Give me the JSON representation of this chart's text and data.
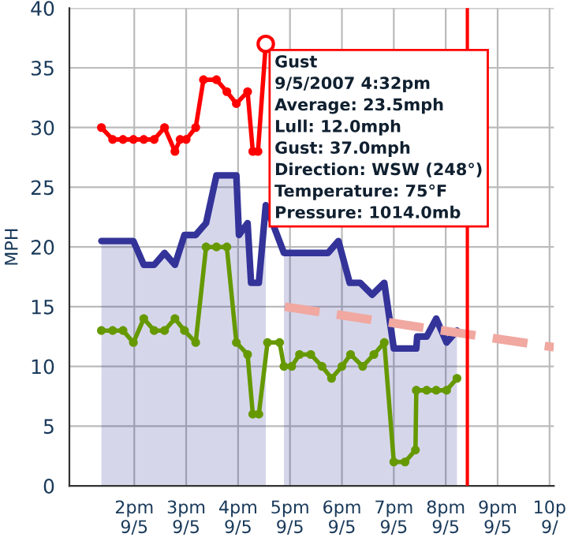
{
  "chart_data": {
    "type": "line",
    "ylabel": "MPH",
    "xlim": [
      "2007-09-05T12:45",
      "2007-09-05T22:05"
    ],
    "ylim": [
      0,
      40
    ],
    "xticks": [
      {
        "value": "2007-09-05T14:00",
        "label": "2pm\n9/5"
      },
      {
        "value": "2007-09-05T15:00",
        "label": "3pm\n9/5"
      },
      {
        "value": "2007-09-05T16:00",
        "label": "4pm\n9/5"
      },
      {
        "value": "2007-09-05T17:00",
        "label": "5pm\n9/5"
      },
      {
        "value": "2007-09-05T18:00",
        "label": "6pm\n9/5"
      },
      {
        "value": "2007-09-05T19:00",
        "label": "7pm\n9/5"
      },
      {
        "value": "2007-09-05T20:00",
        "label": "8pm\n9/5"
      },
      {
        "value": "2007-09-05T21:00",
        "label": "9pm\n9/5"
      },
      {
        "value": "2007-09-05T22:00",
        "label": "10p\n9/"
      }
    ],
    "yticks": [
      0,
      5,
      10,
      15,
      20,
      25,
      30,
      35,
      40
    ],
    "grid": true,
    "legend": false,
    "series": [
      {
        "color": "#ff0000",
        "marker": "circle",
        "x": [
          "2007-09-05T13:22",
          "2007-09-05T13:35",
          "2007-09-05T13:47",
          "2007-09-05T13:59",
          "2007-09-05T14:11",
          "2007-09-05T14:23",
          "2007-09-05T14:35",
          "2007-09-05T14:47",
          "2007-09-05T14:53",
          "2007-09-05T15:00",
          "2007-09-05T15:11",
          "2007-09-05T15:20",
          "2007-09-05T15:35",
          "2007-09-05T15:47",
          "2007-09-05T15:58",
          "2007-09-05T16:11",
          "2007-09-05T16:17",
          "2007-09-05T16:23",
          "2007-09-05T16:32"
        ],
        "values": [
          30,
          29,
          29,
          29,
          29,
          29,
          30,
          28,
          29,
          29,
          30,
          34,
          34,
          33,
          32,
          33,
          28,
          28,
          37
        ]
      },
      {
        "type": "area",
        "color": "#333399",
        "marker": "none",
        "x": [
          "2007-09-05T13:22",
          "2007-09-05T13:35",
          "2007-09-05T13:47",
          "2007-09-05T13:59",
          "2007-09-05T14:11",
          "2007-09-05T14:23",
          "2007-09-05T14:35",
          "2007-09-05T14:47",
          "2007-09-05T14:58",
          "2007-09-05T15:11",
          "2007-09-05T15:23",
          "2007-09-05T15:35",
          "2007-09-05T15:47",
          "2007-09-05T15:58",
          "2007-09-05T16:01",
          "2007-09-05T16:11",
          "2007-09-05T16:15",
          "2007-09-05T16:24",
          "2007-09-05T16:32",
          "2007-09-05T16:45",
          "2007-09-05T16:53",
          "2007-09-05T17:19",
          "2007-09-05T17:44",
          "2007-09-05T17:56",
          "2007-09-05T18:09",
          "2007-09-05T18:21",
          "2007-09-05T18:35",
          "2007-09-05T18:49",
          "2007-09-05T19:00",
          "2007-09-05T19:13",
          "2007-09-05T19:26",
          "2007-09-05T19:27",
          "2007-09-05T19:38",
          "2007-09-05T19:49",
          "2007-09-05T20:01",
          "2007-09-05T20:13"
        ],
        "values": [
          20.5,
          20.5,
          20.5,
          20.5,
          18.5,
          18.5,
          19.5,
          18.5,
          21,
          21,
          22,
          26,
          26,
          26,
          21,
          22,
          17,
          17,
          23.5,
          null,
          19.5,
          19.5,
          19.5,
          20.5,
          17,
          17,
          16,
          17,
          11.5,
          11.5,
          11.5,
          12.5,
          12.5,
          14,
          12,
          13
        ]
      },
      {
        "color": "#669900",
        "marker": "circle",
        "x": [
          "2007-09-05T13:22",
          "2007-09-05T13:35",
          "2007-09-05T13:47",
          "2007-09-05T13:59",
          "2007-09-05T14:11",
          "2007-09-05T14:23",
          "2007-09-05T14:35",
          "2007-09-05T14:47",
          "2007-09-05T14:58",
          "2007-09-05T15:11",
          "2007-09-05T15:23",
          "2007-09-05T15:35",
          "2007-09-05T15:47",
          "2007-09-05T15:58",
          "2007-09-05T16:11",
          "2007-09-05T16:17",
          "2007-09-05T16:24",
          "2007-09-05T16:34",
          "2007-09-05T16:48",
          "2007-09-05T16:53",
          "2007-09-05T17:02",
          "2007-09-05T17:11",
          "2007-09-05T17:24",
          "2007-09-05T17:37",
          "2007-09-05T17:48",
          "2007-09-05T18:00",
          "2007-09-05T18:10",
          "2007-09-05T18:24",
          "2007-09-05T18:37",
          "2007-09-05T18:49",
          "2007-09-05T19:00",
          "2007-09-05T19:13",
          "2007-09-05T19:25",
          "2007-09-05T19:26",
          "2007-09-05T19:38",
          "2007-09-05T19:49",
          "2007-09-05T20:01",
          "2007-09-05T20:13"
        ],
        "values": [
          13,
          13,
          13,
          12,
          14,
          13,
          13,
          14,
          13,
          12,
          20,
          20,
          20,
          12,
          11,
          6,
          6,
          12,
          12,
          10,
          10,
          11,
          11,
          10,
          9,
          10,
          11,
          10,
          11,
          12,
          2,
          2,
          3,
          8,
          8,
          8,
          8,
          9
        ]
      },
      {
        "color": "#f0a8a0",
        "marker": "none",
        "line_style": "dashed",
        "x": [
          "2007-09-05T16:54",
          "2007-09-05T22:05"
        ],
        "values": [
          15,
          11.6
        ]
      }
    ],
    "ref_lines": [
      {
        "axis": "x",
        "value": "2007-09-05T20:25",
        "color": "#ff0000",
        "line_style": "solid"
      }
    ],
    "annotations": [
      {
        "text": "Gust\n9/5/2007 4:32pm\nAverage: 23.5mph\nLull: 12.0mph\nGust: 37.0mph\nDirection: WSW (248°)\nTemperature: 75°F\nPressure: 1014.0mb",
        "x": "2007-09-05T16:32",
        "y": 37
      }
    ]
  }
}
